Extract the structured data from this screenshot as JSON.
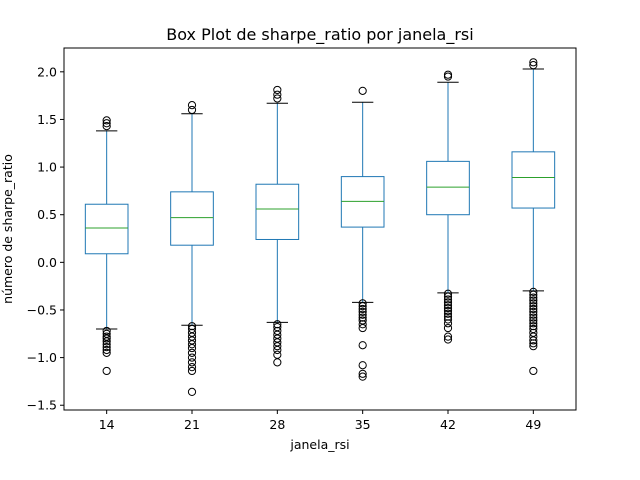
{
  "chart_data": {
    "type": "box",
    "title": "Box Plot de sharpe_ratio por janela_rsi",
    "xlabel": "janela_rsi",
    "ylabel": "número de sharpe_ratio",
    "ylim": [
      -1.55,
      2.25
    ],
    "yticks": [
      -1.5,
      -1.0,
      -0.5,
      0.0,
      0.5,
      1.0,
      1.5,
      2.0
    ],
    "ytick_labels": [
      "−1.5",
      "−1.0",
      "−0.5",
      "0.0",
      "0.5",
      "1.0",
      "1.5",
      "2.0"
    ],
    "grid": false,
    "legend": "none",
    "colors": {
      "box": "#1f77b4",
      "median": "#2ca02c",
      "whisker_cap": "#000000",
      "flier": "#000000"
    },
    "categories": [
      "14",
      "21",
      "28",
      "35",
      "42",
      "49"
    ],
    "boxes": [
      {
        "q1": 0.09,
        "median": 0.36,
        "q3": 0.61,
        "whislo": -0.7,
        "whishi": 1.38,
        "fliers": [
          1.49,
          1.46,
          1.43,
          -0.72,
          -0.75,
          -0.78,
          -0.8,
          -0.83,
          -0.86,
          -0.89,
          -0.92,
          -0.95,
          -1.14
        ]
      },
      {
        "q1": 0.18,
        "median": 0.47,
        "q3": 0.74,
        "whislo": -0.66,
        "whishi": 1.56,
        "fliers": [
          1.65,
          1.6,
          -0.67,
          -0.7,
          -0.74,
          -0.78,
          -0.82,
          -0.86,
          -0.9,
          -0.95,
          -1.0,
          -1.05,
          -1.1,
          -1.14,
          -1.36
        ]
      },
      {
        "q1": 0.24,
        "median": 0.56,
        "q3": 0.82,
        "whislo": -0.63,
        "whishi": 1.67,
        "fliers": [
          1.81,
          1.76,
          1.72,
          -0.65,
          -0.68,
          -0.72,
          -0.76,
          -0.8,
          -0.84,
          -0.88,
          -0.92,
          -0.97,
          -1.05
        ]
      },
      {
        "q1": 0.37,
        "median": 0.64,
        "q3": 0.9,
        "whislo": -0.42,
        "whishi": 1.68,
        "fliers": [
          1.8,
          -0.43,
          -0.46,
          -0.49,
          -0.52,
          -0.55,
          -0.58,
          -0.61,
          -0.65,
          -0.69,
          -0.87,
          -1.08,
          -1.17,
          -1.2
        ]
      },
      {
        "q1": 0.5,
        "median": 0.79,
        "q3": 1.06,
        "whislo": -0.32,
        "whishi": 1.89,
        "fliers": [
          1.97,
          1.95,
          -0.33,
          -0.36,
          -0.39,
          -0.42,
          -0.45,
          -0.48,
          -0.51,
          -0.54,
          -0.57,
          -0.6,
          -0.64,
          -0.69,
          -0.78,
          -0.81
        ]
      },
      {
        "q1": 0.57,
        "median": 0.89,
        "q3": 1.16,
        "whislo": -0.3,
        "whishi": 2.03,
        "fliers": [
          2.1,
          2.07,
          -0.31,
          -0.34,
          -0.37,
          -0.4,
          -0.43,
          -0.46,
          -0.49,
          -0.52,
          -0.55,
          -0.58,
          -0.61,
          -0.64,
          -0.67,
          -0.7,
          -0.74,
          -0.78,
          -0.82,
          -0.85,
          -0.88,
          -1.14
        ]
      }
    ]
  }
}
